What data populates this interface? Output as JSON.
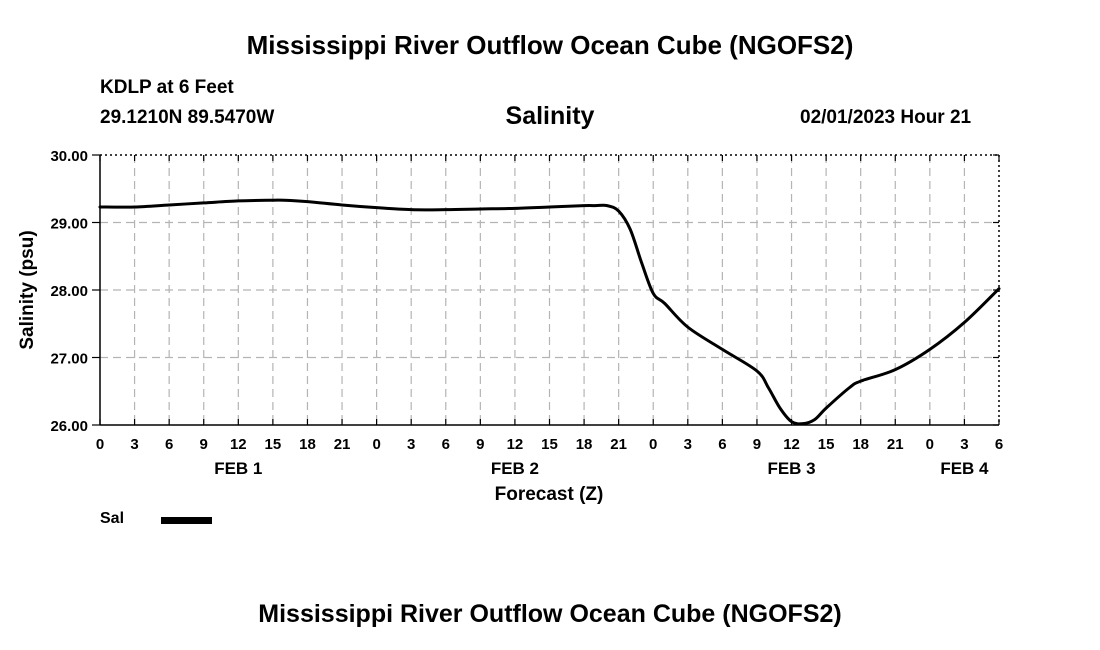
{
  "page": {
    "title_top": "Mississippi River Outflow Ocean Cube (NGOFS2)",
    "title_bottom": "Mississippi River Outflow Ocean Cube (NGOFS2)",
    "station": "KDLP at 6 Feet",
    "coords": "29.1210N  89.5470W",
    "variable": "Salinity",
    "datetime": "02/01/2023 Hour 21"
  },
  "legend": {
    "label": "Sal",
    "color": "#000000"
  },
  "chart_data": {
    "type": "line",
    "title": "Salinity",
    "xlabel": "Forecast (Z)",
    "ylabel": "Salinity (psu)",
    "xlim": [
      0,
      78
    ],
    "ylim": [
      26.0,
      30.0
    ],
    "grid": true,
    "x_ticks": [
      0,
      3,
      6,
      9,
      12,
      15,
      18,
      21,
      24,
      27,
      30,
      33,
      36,
      39,
      42,
      45,
      48,
      51,
      54,
      57,
      60,
      63,
      66,
      69,
      72,
      75,
      78
    ],
    "x_tick_labels": [
      "0",
      "3",
      "6",
      "9",
      "12",
      "15",
      "18",
      "21",
      "0",
      "3",
      "6",
      "9",
      "12",
      "15",
      "18",
      "21",
      "0",
      "3",
      "6",
      "9",
      "12",
      "15",
      "18",
      "21",
      "0",
      "3",
      "6"
    ],
    "y_ticks": [
      26.0,
      27.0,
      28.0,
      29.0,
      30.0
    ],
    "y_tick_labels": [
      "26.00",
      "27.00",
      "28.00",
      "29.00",
      "30.00"
    ],
    "day_labels": [
      {
        "label": "FEB 1",
        "x": 12
      },
      {
        "label": "FEB 2",
        "x": 36
      },
      {
        "label": "FEB 3",
        "x": 60
      },
      {
        "label": "FEB 4",
        "x": 75
      }
    ],
    "series": [
      {
        "name": "Sal",
        "color": "#000000",
        "x": [
          0,
          3,
          6,
          9,
          12,
          15,
          16,
          18,
          21,
          24,
          27,
          30,
          33,
          36,
          39,
          42,
          43,
          44,
          45,
          46,
          47,
          48,
          49,
          51,
          54,
          57,
          58,
          59,
          60,
          61,
          62,
          63,
          65,
          66,
          69,
          72,
          75,
          78
        ],
        "y": [
          29.23,
          29.23,
          29.26,
          29.29,
          29.32,
          29.33,
          29.33,
          29.31,
          29.26,
          29.22,
          29.19,
          29.19,
          29.2,
          29.21,
          29.23,
          29.25,
          29.25,
          29.25,
          29.17,
          28.9,
          28.4,
          27.95,
          27.8,
          27.45,
          27.12,
          26.8,
          26.55,
          26.25,
          26.05,
          26.02,
          26.08,
          26.25,
          26.55,
          26.65,
          26.82,
          27.12,
          27.52,
          28.02
        ]
      }
    ]
  }
}
